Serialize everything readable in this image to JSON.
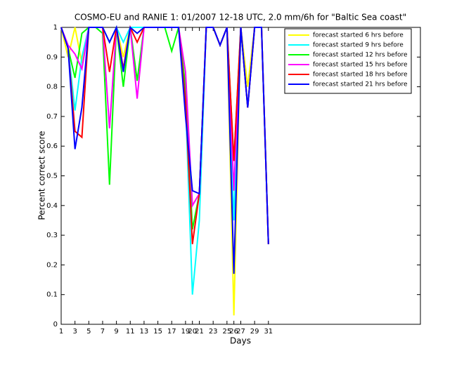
{
  "chart_data": {
    "type": "line",
    "title": "COSMO-EU and RANIE 1: 01/2007 12-18 UTC, 2.0 mm/6h for \"Baltic Sea coast\"",
    "xlabel": "Days",
    "ylabel": "Percent correct score",
    "x": [
      1,
      2,
      3,
      4,
      5,
      6,
      7,
      8,
      9,
      10,
      11,
      12,
      13,
      14,
      15,
      16,
      17,
      18,
      19,
      20,
      21,
      22,
      23,
      24,
      25,
      26,
      27,
      28,
      29,
      30,
      31
    ],
    "xlim": [
      1,
      53
    ],
    "ylim": [
      0,
      1
    ],
    "xticks": [
      1,
      3,
      5,
      7,
      9,
      11,
      13,
      15,
      17,
      19,
      20,
      21,
      23,
      25,
      26,
      27,
      29,
      31
    ],
    "yticks": [
      0,
      0.1,
      0.2,
      0.3,
      0.4,
      0.5,
      0.6,
      0.7,
      0.8,
      0.9,
      1
    ],
    "legend": "upper right",
    "series": [
      {
        "name": "forecast started 6 hrs before",
        "color": "#ffff00",
        "values": [
          1,
          0.9,
          1,
          0.88,
          1,
          1,
          1,
          0.95,
          1,
          0.9,
          1,
          0.98,
          1,
          1,
          1,
          1,
          1,
          1,
          0.8,
          0.4,
          0.44,
          1,
          1,
          0.94,
          1,
          0.03,
          1,
          0.8,
          1,
          1,
          0.27
        ]
      },
      {
        "name": "forecast started 9 hrs before",
        "color": "#00ffff",
        "values": [
          1,
          0.93,
          0.72,
          0.9,
          1,
          1,
          1,
          0.95,
          1,
          0.95,
          1,
          1,
          1,
          1,
          1,
          1,
          1,
          1,
          0.75,
          0.1,
          0.35,
          1,
          1,
          0.94,
          1,
          0.35,
          1,
          0.73,
          1,
          1,
          0.27
        ]
      },
      {
        "name": "forecast started 12 hrs before",
        "color": "#00ff00",
        "values": [
          1,
          0.93,
          0.83,
          0.98,
          1,
          1,
          0.98,
          0.47,
          1,
          0.8,
          1,
          0.82,
          1,
          1,
          1,
          1,
          0.92,
          1,
          0.8,
          0.32,
          0.44,
          1,
          1,
          0.94,
          1,
          0.55,
          1,
          0.73,
          1,
          1,
          0.27
        ]
      },
      {
        "name": "forecast started 15 hrs before",
        "color": "#ff00ff",
        "values": [
          1,
          0.94,
          0.91,
          0.86,
          1,
          1,
          1,
          0.66,
          1,
          0.86,
          1,
          0.76,
          1,
          1,
          1,
          1,
          1,
          1,
          0.85,
          0.4,
          0.44,
          1,
          1,
          0.94,
          1,
          0.45,
          1,
          0.73,
          1,
          1,
          0.27
        ]
      },
      {
        "name": "forecast started 18 hrs before",
        "color": "#ff0000",
        "values": [
          1,
          0.93,
          0.65,
          0.63,
          1,
          1,
          1,
          0.85,
          1,
          0.86,
          1,
          0.95,
          1,
          1,
          1,
          1,
          1,
          1,
          0.75,
          0.27,
          0.44,
          1,
          1,
          0.94,
          1,
          0.55,
          1,
          0.73,
          1,
          1,
          0.27
        ]
      },
      {
        "name": "forecast started 21 hrs before",
        "color": "#0000ff",
        "values": [
          1,
          0.93,
          0.59,
          0.73,
          1,
          1,
          1,
          0.95,
          1,
          0.85,
          1,
          0.98,
          1,
          1,
          1,
          1,
          1,
          1,
          0.7,
          0.45,
          0.44,
          1,
          1,
          0.94,
          1,
          0.17,
          1,
          0.73,
          1,
          1,
          0.27
        ]
      }
    ]
  }
}
